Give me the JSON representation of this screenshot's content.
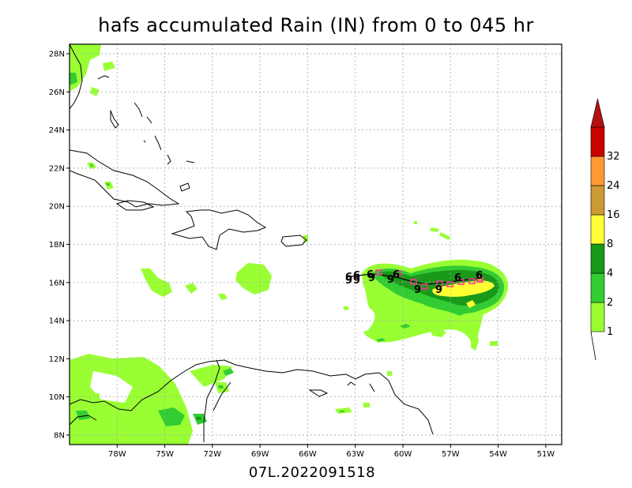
{
  "title": "hafs accumulated Rain (IN) from 0 to 045 hr",
  "subtitle": "07L.2022091518",
  "map": {
    "lon_range": [
      -81,
      -50
    ],
    "lat_range": [
      7.5,
      28.5
    ],
    "lon_ticks": [
      {
        "value": -78,
        "label": "78W"
      },
      {
        "value": -75,
        "label": "75W"
      },
      {
        "value": -72,
        "label": "72W"
      },
      {
        "value": -69,
        "label": "69W"
      },
      {
        "value": -66,
        "label": "66W"
      },
      {
        "value": -63,
        "label": "63W"
      },
      {
        "value": -60,
        "label": "60W"
      },
      {
        "value": -57,
        "label": "57W"
      },
      {
        "value": -54,
        "label": "54W"
      },
      {
        "value": -51,
        "label": "51W"
      }
    ],
    "lat_ticks": [
      {
        "value": 8,
        "label": "8N"
      },
      {
        "value": 10,
        "label": "10N"
      },
      {
        "value": 12,
        "label": "12N"
      },
      {
        "value": 14,
        "label": "14N"
      },
      {
        "value": 16,
        "label": "16N"
      },
      {
        "value": 18,
        "label": "18N"
      },
      {
        "value": 20,
        "label": "20N"
      },
      {
        "value": 22,
        "label": "22N"
      },
      {
        "value": 24,
        "label": "24N"
      },
      {
        "value": 26,
        "label": "26N"
      },
      {
        "value": 28,
        "label": "28N"
      }
    ],
    "grid": "dotted"
  },
  "colorbar": {
    "levels": [
      "1",
      "2",
      "4",
      "8",
      "16",
      "24",
      "32"
    ],
    "colors": [
      "#99ff33",
      "#33cc33",
      "#1a991a",
      "#ffff33",
      "#cc9933",
      "#ff9933",
      "#cc0000",
      "#b31010"
    ]
  },
  "track": {
    "labels_6": [
      "6",
      "6",
      "6",
      "6",
      "6",
      "6"
    ],
    "labels_9": [
      "9",
      "9",
      "9",
      "9",
      "9",
      "9"
    ],
    "line_color": "#000000",
    "marker_color": "#ff3399"
  }
}
